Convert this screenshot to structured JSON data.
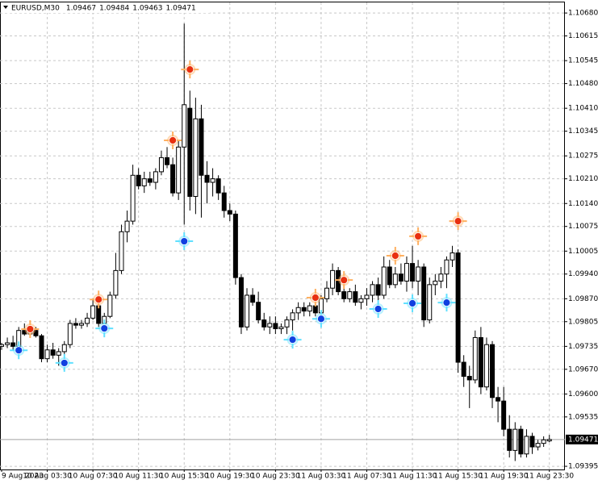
{
  "chart_data": {
    "type": "candlestick",
    "title": "EURUSD,M30",
    "header_values": [
      1.09467,
      1.09484,
      1.09463,
      1.09471
    ],
    "current_price": 1.09471,
    "up_color": "#ffffff",
    "down_color": "#000000",
    "grid": true,
    "ylim": [
      1.09386,
      1.1071
    ],
    "yticks": [
      {
        "value": 1.1068,
        "label": "1.10680"
      },
      1.10615,
      1.10545,
      {
        "value": 1.1048,
        "label": "1.10480"
      },
      {
        "value": 1.1041,
        "label": "1.10410"
      },
      1.10345,
      1.10275,
      {
        "value": 1.1021,
        "label": "1.10210"
      },
      {
        "value": 1.1014,
        "label": "1.10140"
      },
      1.10075,
      1.10005,
      {
        "value": 1.0994,
        "label": "1.09940"
      },
      {
        "value": 1.0987,
        "label": "1.09870"
      },
      1.09805,
      1.09735,
      {
        "value": 1.0967,
        "label": "1.09670"
      },
      {
        "value": 1.096,
        "label": "1.09600"
      },
      1.09535,
      1.09395
    ],
    "categories": [
      "9 Aug 2023",
      null,
      null,
      null,
      null,
      null,
      null,
      null,
      "10 Aug 03:30",
      null,
      null,
      null,
      null,
      null,
      null,
      null,
      "10 Aug 07:30",
      null,
      null,
      null,
      null,
      null,
      null,
      null,
      "10 Aug 11:30",
      null,
      null,
      null,
      null,
      null,
      null,
      null,
      "10 Aug 15:30",
      null,
      null,
      null,
      null,
      null,
      null,
      null,
      "10 Aug 19:30",
      null,
      null,
      null,
      null,
      null,
      null,
      null,
      "10 Aug 23:30",
      null,
      null,
      null,
      null,
      null,
      null,
      null,
      "11 Aug 03:30",
      null,
      null,
      null,
      null,
      null,
      null,
      null,
      "11 Aug 07:30",
      null,
      null,
      null,
      null,
      null,
      null,
      null,
      "11 Aug 11:30",
      null,
      null,
      null,
      null,
      null,
      null,
      null,
      "11 Aug 15:30",
      null,
      null,
      null,
      null,
      null,
      null,
      null,
      "11 Aug 19:30",
      null,
      null,
      null,
      null,
      null,
      null,
      null,
      "11 Aug 23:30"
    ],
    "open": [
      1.09735,
      1.0974,
      1.09745,
      1.09735,
      1.0978,
      1.0977,
      1.0978,
      1.09765,
      1.097,
      1.09725,
      1.0971,
      1.0972,
      1.0974,
      1.098,
      1.09795,
      1.098,
      1.09815,
      1.0985,
      1.098,
      1.0982,
      1.0988,
      1.0995,
      1.1006,
      1.1009,
      1.1022,
      1.1019,
      1.1021,
      1.102,
      1.1023,
      1.1027,
      1.1025,
      1.1017,
      1.103,
      1.1041,
      1.1016,
      1.1038,
      1.1022,
      1.102,
      1.1021,
      1.1017,
      1.1012,
      1.1011,
      1.0993,
      1.0979,
      1.0988,
      1.0986,
      1.0981,
      1.0979,
      1.098,
      1.09785,
      1.0979,
      1.0981,
      1.0983,
      1.09845,
      1.09835,
      1.0985,
      1.0983,
      1.0987,
      1.099,
      1.0995,
      1.0989,
      1.0987,
      1.0989,
      1.0986,
      1.0987,
      1.0988,
      1.0991,
      1.0988,
      1.0996,
      1.0991,
      1.0994,
      1.0992,
      1.0997,
      1.0992,
      1.0996,
      1.0981,
      1.0991,
      1.0992,
      1.0994,
      1.0998,
      1.1,
      1.0969,
      1.0965,
      1.0964,
      1.0976,
      1.0962,
      1.0974,
      1.0959,
      1.0958,
      1.095,
      1.0944,
      1.095,
      1.0943,
      1.0948,
      1.0945,
      1.0946,
      1.09467
    ],
    "high": [
      1.09745,
      1.0976,
      1.09765,
      1.0979,
      1.098,
      1.0978,
      1.0979,
      1.0977,
      1.0974,
      1.09745,
      1.0973,
      1.0975,
      1.0981,
      1.09815,
      1.0981,
      1.0983,
      1.0987,
      1.09865,
      1.0983,
      1.0989,
      1.1,
      1.1008,
      1.1012,
      1.1025,
      1.1024,
      1.1023,
      1.1023,
      1.1024,
      1.1029,
      1.103,
      1.1027,
      1.1032,
      1.1065,
      1.1046,
      1.1044,
      1.1042,
      1.1026,
      1.1024,
      1.1022,
      1.1019,
      1.1014,
      1.1012,
      1.0994,
      1.099,
      1.099,
      1.0989,
      1.0983,
      1.0982,
      1.0982,
      1.098,
      1.0982,
      1.0984,
      1.0986,
      1.0986,
      1.0986,
      1.0987,
      1.0988,
      1.0992,
      1.0997,
      1.0996,
      1.0992,
      1.099,
      1.0991,
      1.0988,
      1.099,
      1.0992,
      1.0993,
      1.0999,
      1.0998,
      1.0996,
      1.0997,
      1.0999,
      1.1002,
      1.0998,
      1.0997,
      1.0993,
      1.0994,
      1.0996,
      1.0999,
      1.1002,
      1.1001,
      1.0971,
      1.0968,
      1.0978,
      1.0979,
      1.0976,
      1.0975,
      1.0962,
      1.0962,
      1.0954,
      1.0952,
      1.0951,
      1.095,
      1.0949,
      1.0947,
      1.0948,
      1.09484
    ],
    "low": [
      1.09725,
      1.0973,
      1.09725,
      1.0973,
      1.09765,
      1.0976,
      1.0976,
      1.0969,
      1.0969,
      1.097,
      1.0968,
      1.097,
      1.0973,
      1.09785,
      1.09785,
      1.0979,
      1.0981,
      1.0979,
      1.0979,
      1.09815,
      1.0987,
      1.0994,
      1.1003,
      1.1008,
      1.1018,
      1.1017,
      1.1019,
      1.1018,
      1.1022,
      1.1024,
      1.1016,
      1.1015,
      1.1008,
      1.1012,
      1.1011,
      1.101,
      1.1014,
      1.1016,
      1.1015,
      1.101,
      1.1009,
      1.0991,
      1.0977,
      1.0978,
      1.0985,
      1.098,
      1.0978,
      1.0977,
      1.0977,
      1.0977,
      1.0977,
      1.0978,
      1.0981,
      1.0982,
      1.0982,
      1.0982,
      1.0982,
      1.0986,
      1.0988,
      1.0988,
      1.0986,
      1.0986,
      1.0985,
      1.0984,
      1.0985,
      1.0986,
      1.0986,
      1.0987,
      1.099,
      1.099,
      1.0991,
      1.0989,
      1.099,
      1.0988,
      1.0979,
      1.098,
      1.0988,
      1.099,
      1.099,
      1.0996,
      1.0966,
      1.0962,
      1.0956,
      1.0963,
      1.096,
      1.0961,
      1.0956,
      1.0952,
      1.0948,
      1.0942,
      1.0941,
      1.0942,
      1.0942,
      1.0943,
      1.0944,
      1.0945,
      1.09463
    ],
    "close": [
      1.0974,
      1.09745,
      1.09735,
      1.0978,
      1.0977,
      1.09775,
      1.09765,
      1.097,
      1.09725,
      1.0971,
      1.0972,
      1.0974,
      1.098,
      1.09795,
      1.098,
      1.09815,
      1.0985,
      1.098,
      1.0982,
      1.0988,
      1.0995,
      1.1006,
      1.1009,
      1.1022,
      1.1019,
      1.1021,
      1.102,
      1.1023,
      1.1027,
      1.1025,
      1.1017,
      1.103,
      1.1042,
      1.1016,
      1.1038,
      1.1022,
      1.102,
      1.1021,
      1.1017,
      1.1012,
      1.1011,
      1.0993,
      1.0979,
      1.0988,
      1.0986,
      1.0981,
      1.0979,
      1.098,
      1.09785,
      1.0979,
      1.0981,
      1.0983,
      1.09845,
      1.09835,
      1.0985,
      1.0983,
      1.0987,
      1.099,
      1.0995,
      1.0989,
      1.0987,
      1.0989,
      1.0986,
      1.0987,
      1.0988,
      1.0991,
      1.0988,
      1.0996,
      1.0991,
      1.0994,
      1.0992,
      1.0997,
      1.0992,
      1.0996,
      1.0981,
      1.0991,
      1.0992,
      1.0994,
      1.0998,
      1.1,
      1.0969,
      1.0965,
      1.0964,
      1.0976,
      1.0962,
      1.0974,
      1.0959,
      1.0958,
      1.095,
      1.0944,
      1.095,
      1.0943,
      1.0948,
      1.0945,
      1.0946,
      1.0947,
      1.09471
    ],
    "sell_signals": {
      "color": "#e83010",
      "glow": "#ffb060",
      "values": [
        null,
        null,
        null,
        null,
        null,
        1.09784,
        null,
        null,
        null,
        null,
        null,
        null,
        null,
        null,
        null,
        null,
        null,
        1.09868,
        null,
        null,
        null,
        null,
        null,
        null,
        null,
        null,
        null,
        null,
        null,
        null,
        1.10319,
        null,
        null,
        1.1052,
        null,
        null,
        null,
        null,
        null,
        null,
        null,
        null,
        null,
        null,
        null,
        null,
        null,
        null,
        null,
        null,
        null,
        null,
        null,
        null,
        null,
        1.09873,
        null,
        null,
        null,
        null,
        1.09923,
        null,
        null,
        null,
        null,
        null,
        null,
        null,
        null,
        1.09992,
        null,
        null,
        null,
        1.10047,
        null,
        null,
        null,
        null,
        null,
        null,
        1.1009,
        null,
        null,
        null,
        null,
        null,
        null,
        null,
        null,
        null,
        null,
        null,
        null,
        null,
        null,
        null,
        null
      ]
    },
    "buy_signals": {
      "color": "#1040e0",
      "glow": "#60e0ff",
      "values": [
        null,
        null,
        null,
        1.09724,
        null,
        null,
        null,
        null,
        null,
        null,
        null,
        1.09688,
        null,
        null,
        null,
        null,
        null,
        null,
        1.09786,
        null,
        null,
        null,
        null,
        null,
        null,
        null,
        null,
        null,
        null,
        null,
        null,
        null,
        1.10033,
        null,
        null,
        null,
        null,
        null,
        null,
        null,
        null,
        null,
        null,
        null,
        null,
        null,
        null,
        null,
        null,
        null,
        null,
        1.09754,
        null,
        null,
        null,
        null,
        1.09813,
        null,
        null,
        null,
        null,
        null,
        null,
        null,
        null,
        null,
        1.09841,
        null,
        null,
        null,
        null,
        null,
        1.09857,
        null,
        null,
        null,
        null,
        null,
        1.09859,
        null,
        null,
        null,
        null,
        null,
        null,
        null,
        null,
        null,
        null,
        null,
        null,
        null,
        null,
        null,
        null,
        null,
        null
      ]
    }
  }
}
